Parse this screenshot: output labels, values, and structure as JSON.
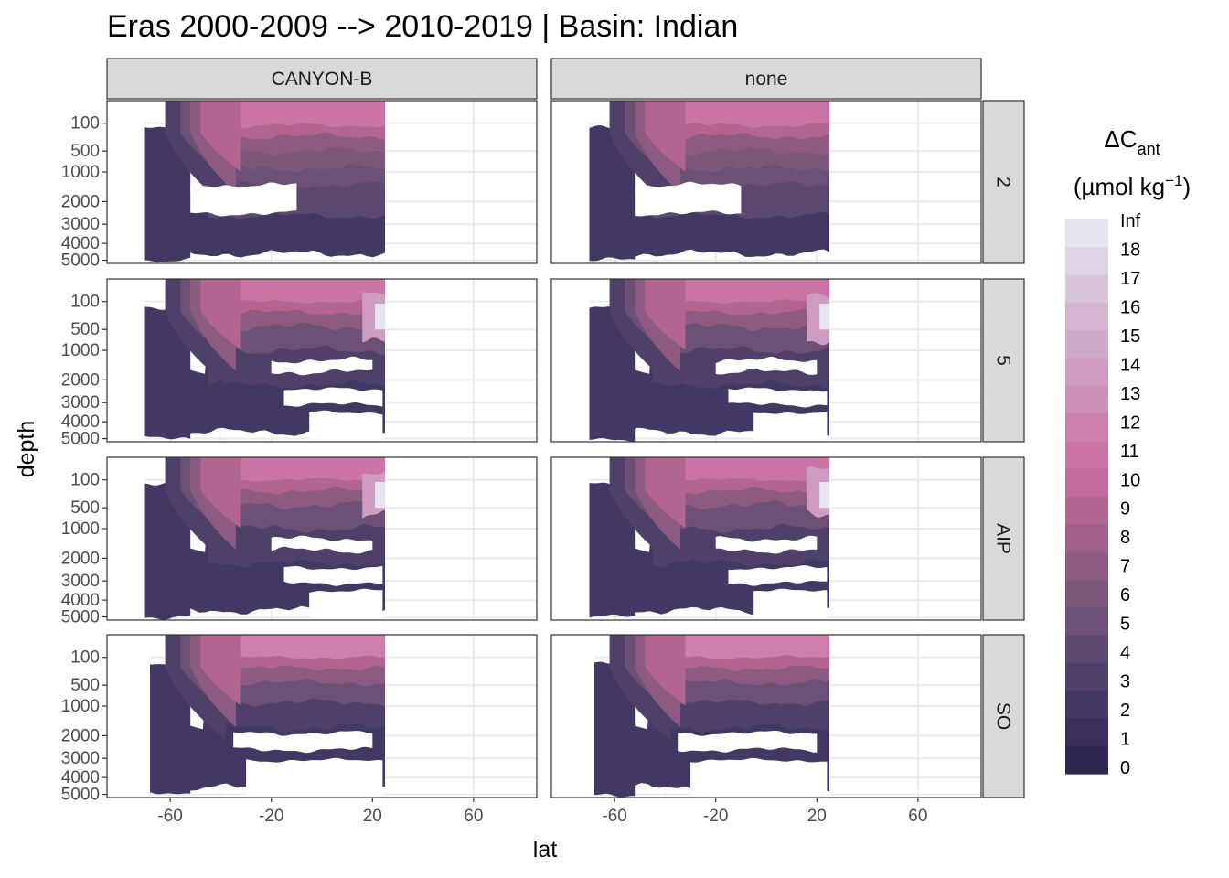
{
  "chart_data": {
    "type": "heatmap",
    "subtype": "filled-contour section, faceted",
    "title": "Eras 2000-2009 --> 2010-2019 | Basin: Indian",
    "xlabel": "lat",
    "ylabel": "depth",
    "x_ticks": [
      -60,
      -20,
      20,
      60
    ],
    "x_range": [
      -85,
      85
    ],
    "y_ticks": [
      100,
      500,
      1000,
      2000,
      3000,
      4000,
      5000
    ],
    "y_range": [
      0,
      5200
    ],
    "y_reversed": true,
    "y_scale": "sqrt",
    "column_facets": [
      "CANYON-B",
      "none"
    ],
    "row_facets": [
      "2",
      "5",
      "AIP",
      "SO"
    ],
    "data_lat_range": [
      -70,
      25
    ],
    "legend": {
      "title_main": "ΔC",
      "title_sub": "ant",
      "unit_prefix": "(µmol kg",
      "unit_sup": "−1",
      "unit_suffix": ")",
      "labels": [
        "Inf",
        "18",
        "17",
        "16",
        "15",
        "14",
        "13",
        "12",
        "11",
        "10",
        "9",
        "8",
        "7",
        "6",
        "5",
        "4",
        "3",
        "2",
        "1",
        "0"
      ],
      "colors": [
        "#e6e4ee",
        "#dfd4e4",
        "#d8c5da",
        "#d3b5cf",
        "#ceaac8",
        "#cd9cc0",
        "#cc8fb6",
        "#ce7fab",
        "#cd74a6",
        "#c66b9e",
        "#b1658f",
        "#a05f88",
        "#8d5a81",
        "#7d567b",
        "#6d5075",
        "#5d4870",
        "#4f406a",
        "#433864",
        "#3a2f5a",
        "#2e2550"
      ],
      "placement": "right"
    },
    "grid": true
  }
}
